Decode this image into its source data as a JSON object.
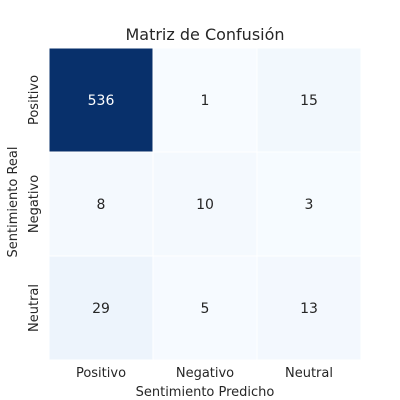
{
  "chart_data": {
    "type": "heatmap",
    "title": "Matriz de Confusión",
    "xlabel": "Sentimiento Predicho",
    "ylabel": "Sentimiento Real",
    "x_categories": [
      "Positivo",
      "Negativo",
      "Neutral"
    ],
    "y_categories": [
      "Positivo",
      "Negativo",
      "Neutral"
    ],
    "values": [
      [
        536,
        1,
        15
      ],
      [
        8,
        10,
        3
      ],
      [
        29,
        5,
        13
      ]
    ],
    "colormap": "Blues",
    "color_low": "#f7fbff",
    "color_high": "#08306b",
    "colorbar": false
  }
}
